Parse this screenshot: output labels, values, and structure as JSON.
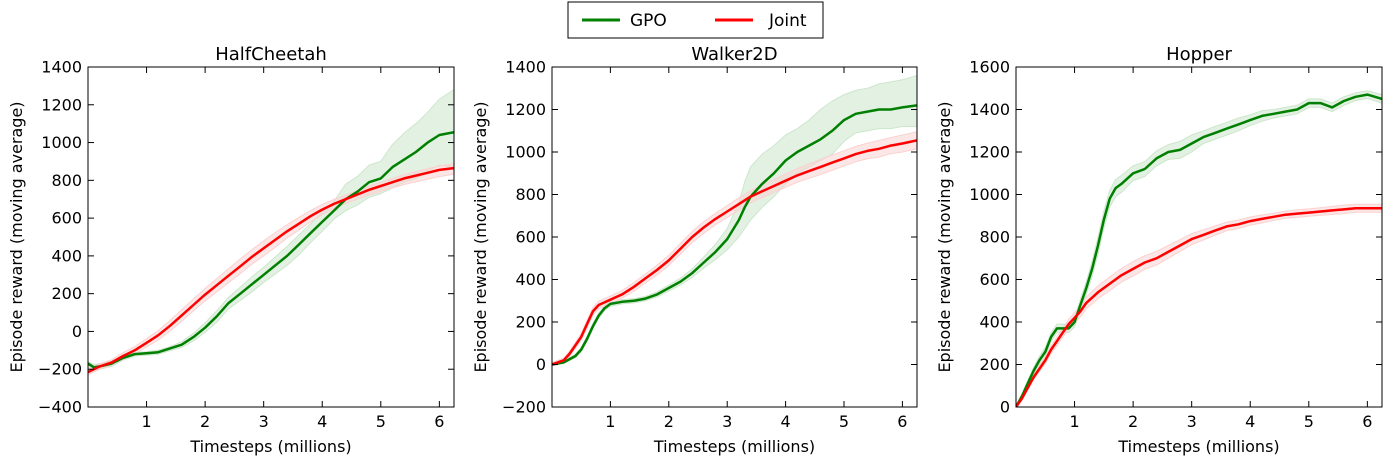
{
  "legend": {
    "items": [
      {
        "label": "GPO",
        "color": "#008000"
      },
      {
        "label": "Joint",
        "color": "#ff0000"
      }
    ]
  },
  "chart_data": [
    {
      "type": "line",
      "title": "HalfCheetah",
      "xlabel": "Timesteps (millions)",
      "ylabel": "Episode reward (moving average)",
      "xlim": [
        0,
        6.25
      ],
      "ylim": [
        -400,
        1400
      ],
      "xticks": [
        1,
        2,
        3,
        4,
        5,
        6
      ],
      "yticks": [
        -400,
        -200,
        0,
        200,
        400,
        600,
        800,
        1000,
        1200,
        1400
      ],
      "ytick_labels": [
        "−400",
        "−200",
        "0",
        "200",
        "400",
        "600",
        "800",
        "1000",
        "1200",
        "1400"
      ],
      "grid": false,
      "series": [
        {
          "name": "GPO",
          "color": "#008000",
          "fill": "#cce6cc",
          "x": [
            0,
            0.1,
            0.2,
            0.4,
            0.6,
            0.8,
            1.0,
            1.2,
            1.4,
            1.6,
            1.8,
            2.0,
            2.2,
            2.4,
            2.6,
            2.8,
            3.0,
            3.2,
            3.4,
            3.6,
            3.8,
            4.0,
            4.2,
            4.4,
            4.6,
            4.8,
            5.0,
            5.2,
            5.4,
            5.6,
            5.8,
            6.0,
            6.25
          ],
          "values": [
            -170,
            -190,
            -185,
            -170,
            -140,
            -120,
            -115,
            -110,
            -90,
            -70,
            -30,
            20,
            80,
            150,
            200,
            250,
            300,
            350,
            400,
            460,
            520,
            580,
            640,
            700,
            740,
            790,
            810,
            870,
            910,
            950,
            1000,
            1040,
            1055
          ],
          "upper": [
            -160,
            -175,
            -170,
            -158,
            -130,
            -112,
            -108,
            -100,
            -80,
            -55,
            -10,
            45,
            110,
            180,
            235,
            290,
            340,
            395,
            450,
            510,
            570,
            630,
            690,
            780,
            820,
            880,
            900,
            990,
            1050,
            1100,
            1160,
            1230,
            1280
          ],
          "lower": [
            -185,
            -205,
            -200,
            -185,
            -152,
            -130,
            -125,
            -120,
            -102,
            -85,
            -50,
            -5,
            50,
            120,
            165,
            210,
            260,
            305,
            350,
            405,
            470,
            530,
            595,
            640,
            670,
            710,
            730,
            760,
            790,
            810,
            850,
            880,
            870
          ]
        },
        {
          "name": "Joint",
          "color": "#ff0000",
          "fill": "#fad2d2",
          "x": [
            0,
            0.2,
            0.4,
            0.6,
            0.8,
            1.0,
            1.2,
            1.4,
            1.6,
            1.8,
            2.0,
            2.2,
            2.4,
            2.6,
            2.8,
            3.0,
            3.2,
            3.4,
            3.6,
            3.8,
            4.0,
            4.2,
            4.4,
            4.6,
            4.8,
            5.0,
            5.2,
            5.4,
            5.6,
            5.8,
            6.0,
            6.25
          ],
          "values": [
            -215,
            -185,
            -165,
            -130,
            -100,
            -60,
            -20,
            30,
            85,
            140,
            195,
            245,
            295,
            345,
            395,
            440,
            485,
            530,
            570,
            610,
            645,
            675,
            700,
            725,
            750,
            770,
            790,
            810,
            825,
            840,
            855,
            865
          ],
          "upper": [
            -200,
            -170,
            -150,
            -112,
            -80,
            -38,
            5,
            58,
            115,
            172,
            228,
            280,
            332,
            384,
            434,
            480,
            524,
            566,
            604,
            640,
            672,
            700,
            722,
            746,
            770,
            790,
            810,
            830,
            846,
            862,
            876,
            888
          ],
          "lower": [
            -230,
            -200,
            -180,
            -148,
            -120,
            -82,
            -45,
            2,
            55,
            108,
            162,
            210,
            258,
            306,
            356,
            400,
            446,
            494,
            536,
            580,
            618,
            650,
            678,
            700,
            722,
            742,
            760,
            778,
            792,
            806,
            820,
            832
          ]
        }
      ]
    },
    {
      "type": "line",
      "title": "Walker2D",
      "xlabel": "Timesteps (millions)",
      "ylabel": "Episode reward (moving average)",
      "xlim": [
        0,
        6.25
      ],
      "ylim": [
        -200,
        1400
      ],
      "xticks": [
        1,
        2,
        3,
        4,
        5,
        6
      ],
      "yticks": [
        -200,
        0,
        200,
        400,
        600,
        800,
        1000,
        1200,
        1400
      ],
      "ytick_labels": [
        "−200",
        "0",
        "200",
        "400",
        "600",
        "800",
        "1000",
        "1200",
        "1400"
      ],
      "grid": false,
      "series": [
        {
          "name": "GPO",
          "color": "#008000",
          "fill": "#cce6cc",
          "x": [
            0,
            0.2,
            0.4,
            0.5,
            0.6,
            0.7,
            0.8,
            0.9,
            1.0,
            1.2,
            1.4,
            1.6,
            1.8,
            2.0,
            2.2,
            2.4,
            2.6,
            2.8,
            3.0,
            3.2,
            3.3,
            3.4,
            3.6,
            3.8,
            4.0,
            4.2,
            4.4,
            4.6,
            4.8,
            5.0,
            5.2,
            5.4,
            5.6,
            5.8,
            6.0,
            6.25
          ],
          "values": [
            0,
            10,
            40,
            70,
            120,
            180,
            230,
            265,
            285,
            295,
            300,
            310,
            330,
            360,
            390,
            430,
            480,
            530,
            590,
            680,
            740,
            790,
            850,
            900,
            960,
            1000,
            1030,
            1060,
            1100,
            1150,
            1180,
            1190,
            1200,
            1200,
            1210,
            1220
          ],
          "upper": [
            5,
            15,
            48,
            80,
            132,
            192,
            242,
            276,
            296,
            305,
            310,
            320,
            342,
            374,
            406,
            450,
            506,
            566,
            640,
            760,
            860,
            930,
            990,
            1030,
            1080,
            1110,
            1150,
            1200,
            1240,
            1270,
            1290,
            1300,
            1320,
            1330,
            1340,
            1360
          ],
          "lower": [
            -5,
            5,
            32,
            60,
            108,
            168,
            218,
            254,
            274,
            285,
            290,
            300,
            318,
            346,
            374,
            410,
            454,
            494,
            540,
            600,
            640,
            680,
            740,
            790,
            850,
            900,
            930,
            960,
            990,
            1050,
            1090,
            1100,
            1110,
            1110,
            1120,
            1120
          ]
        },
        {
          "name": "Joint",
          "color": "#ff0000",
          "fill": "#fad2d2",
          "x": [
            0,
            0.2,
            0.3,
            0.4,
            0.5,
            0.6,
            0.7,
            0.8,
            1.0,
            1.2,
            1.4,
            1.6,
            1.8,
            2.0,
            2.2,
            2.4,
            2.6,
            2.8,
            3.0,
            3.2,
            3.4,
            3.6,
            3.8,
            4.0,
            4.2,
            4.4,
            4.6,
            4.8,
            5.0,
            5.2,
            5.4,
            5.6,
            5.8,
            6.0,
            6.25
          ],
          "values": [
            0,
            20,
            50,
            90,
            130,
            190,
            250,
            280,
            305,
            330,
            365,
            405,
            445,
            490,
            545,
            600,
            645,
            685,
            720,
            755,
            790,
            815,
            840,
            865,
            890,
            910,
            930,
            950,
            970,
            990,
            1005,
            1015,
            1030,
            1040,
            1055
          ],
          "upper": [
            8,
            30,
            62,
            104,
            146,
            208,
            268,
            298,
            322,
            348,
            385,
            426,
            468,
            514,
            570,
            626,
            672,
            712,
            748,
            784,
            818,
            845,
            870,
            896,
            922,
            944,
            966,
            986,
            1006,
            1026,
            1042,
            1054,
            1068,
            1080,
            1095
          ],
          "lower": [
            -8,
            10,
            38,
            76,
            114,
            172,
            232,
            262,
            288,
            312,
            345,
            384,
            422,
            466,
            520,
            574,
            618,
            658,
            692,
            726,
            762,
            785,
            810,
            834,
            858,
            876,
            894,
            914,
            934,
            954,
            968,
            976,
            992,
            1000,
            1015
          ]
        }
      ]
    },
    {
      "type": "line",
      "title": "Hopper",
      "xlabel": "Timesteps (millions)",
      "ylabel": "Episode reward (moving average)",
      "xlim": [
        0,
        6.25
      ],
      "ylim": [
        0,
        1600
      ],
      "xticks": [
        1,
        2,
        3,
        4,
        5,
        6
      ],
      "yticks": [
        0,
        200,
        400,
        600,
        800,
        1000,
        1200,
        1400,
        1600
      ],
      "ytick_labels": [
        "0",
        "200",
        "400",
        "600",
        "800",
        "1000",
        "1200",
        "1400",
        "1600"
      ],
      "grid": false,
      "series": [
        {
          "name": "GPO",
          "color": "#008000",
          "fill": "#cce6cc",
          "x": [
            0,
            0.1,
            0.2,
            0.3,
            0.4,
            0.5,
            0.6,
            0.7,
            0.8,
            0.9,
            1.0,
            1.1,
            1.2,
            1.3,
            1.4,
            1.5,
            1.6,
            1.7,
            1.8,
            2.0,
            2.2,
            2.4,
            2.6,
            2.8,
            3.0,
            3.2,
            3.4,
            3.6,
            3.8,
            4.0,
            4.2,
            4.4,
            4.6,
            4.8,
            5.0,
            5.2,
            5.4,
            5.6,
            5.8,
            6.0,
            6.25
          ],
          "values": [
            0,
            50,
            110,
            170,
            220,
            260,
            330,
            370,
            370,
            370,
            400,
            480,
            560,
            650,
            760,
            880,
            980,
            1030,
            1050,
            1100,
            1120,
            1170,
            1200,
            1210,
            1240,
            1270,
            1290,
            1310,
            1330,
            1350,
            1370,
            1380,
            1390,
            1400,
            1430,
            1430,
            1410,
            1440,
            1460,
            1470,
            1450
          ],
          "upper": [
            8,
            62,
            125,
            186,
            238,
            280,
            350,
            390,
            390,
            390,
            422,
            506,
            590,
            685,
            800,
            920,
            1020,
            1070,
            1090,
            1135,
            1155,
            1205,
            1235,
            1250,
            1280,
            1300,
            1320,
            1340,
            1360,
            1375,
            1395,
            1400,
            1410,
            1420,
            1450,
            1450,
            1430,
            1460,
            1478,
            1488,
            1470
          ],
          "lower": [
            -8,
            38,
            95,
            154,
            202,
            240,
            310,
            350,
            350,
            350,
            378,
            454,
            530,
            615,
            720,
            840,
            940,
            990,
            1010,
            1065,
            1085,
            1135,
            1165,
            1170,
            1200,
            1240,
            1260,
            1280,
            1300,
            1325,
            1345,
            1360,
            1370,
            1380,
            1410,
            1410,
            1390,
            1420,
            1442,
            1452,
            1430
          ]
        },
        {
          "name": "Joint",
          "color": "#ff0000",
          "fill": "#fad2d2",
          "x": [
            0,
            0.1,
            0.2,
            0.3,
            0.4,
            0.5,
            0.6,
            0.7,
            0.8,
            0.9,
            1.0,
            1.1,
            1.2,
            1.4,
            1.6,
            1.8,
            2.0,
            2.2,
            2.4,
            2.6,
            2.8,
            3.0,
            3.2,
            3.4,
            3.6,
            3.8,
            4.0,
            4.2,
            4.4,
            4.6,
            4.8,
            5.0,
            5.2,
            5.4,
            5.6,
            5.8,
            6.0,
            6.25
          ],
          "values": [
            0,
            40,
            90,
            140,
            180,
            220,
            270,
            310,
            350,
            390,
            420,
            450,
            490,
            540,
            580,
            620,
            650,
            680,
            700,
            730,
            760,
            790,
            810,
            830,
            850,
            860,
            875,
            885,
            895,
            905,
            910,
            915,
            920,
            925,
            930,
            935,
            935,
            935
          ],
          "upper": [
            5,
            48,
            100,
            152,
            194,
            236,
            288,
            330,
            372,
            412,
            444,
            476,
            518,
            570,
            612,
            652,
            684,
            712,
            732,
            760,
            788,
            816,
            834,
            852,
            870,
            880,
            894,
            904,
            912,
            922,
            928,
            932,
            938,
            944,
            950,
            954,
            954,
            954
          ],
          "lower": [
            -5,
            32,
            80,
            128,
            166,
            204,
            252,
            290,
            328,
            368,
            396,
            424,
            462,
            510,
            548,
            588,
            616,
            648,
            668,
            700,
            732,
            764,
            786,
            808,
            830,
            840,
            856,
            866,
            878,
            888,
            892,
            898,
            902,
            906,
            910,
            916,
            916,
            916
          ]
        }
      ]
    }
  ]
}
